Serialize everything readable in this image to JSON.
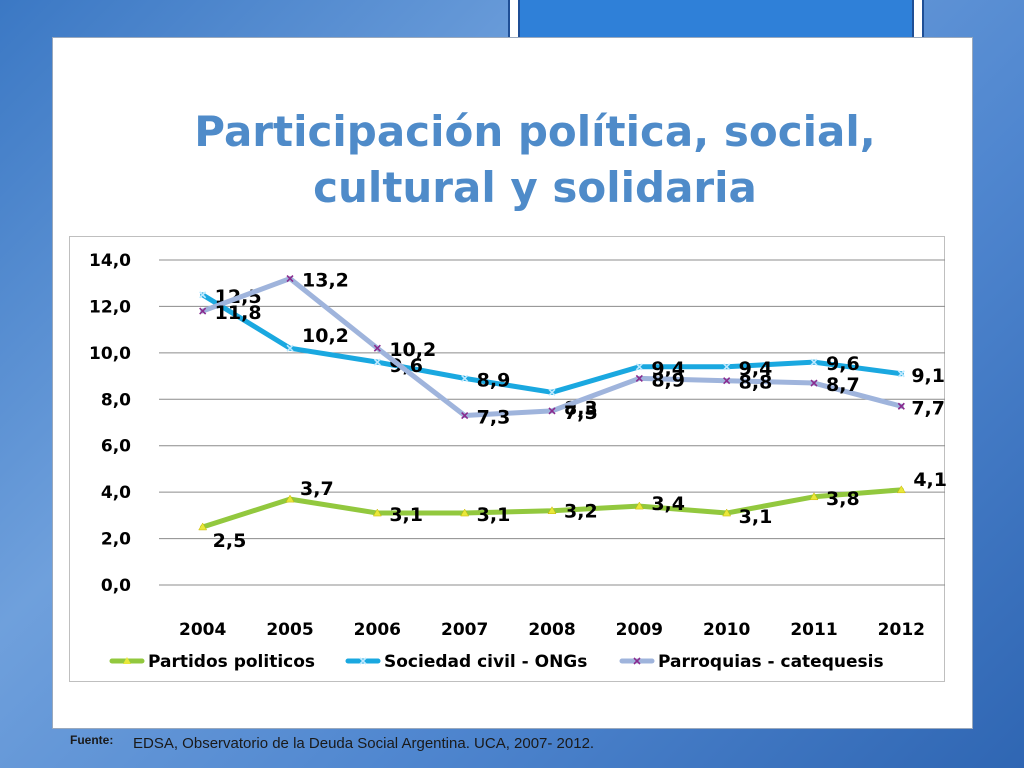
{
  "slide": {
    "title_line1": "Participación política, social,",
    "title_line2": "cultural y solidaria",
    "footer_label": "Fuente:",
    "footer_text": "EDSA, Observatorio de la Deuda Social Argentina. UCA, 2007- 2012."
  },
  "chart_data": {
    "type": "line",
    "categories": [
      "2004",
      "2005",
      "2006",
      "2007",
      "2008",
      "2009",
      "2010",
      "2011",
      "2012"
    ],
    "ylim": [
      0,
      14
    ],
    "yticks": [
      "0,0",
      "2,0",
      "4,0",
      "6,0",
      "8,0",
      "10,0",
      "12,0",
      "14,0"
    ],
    "grid": true,
    "legend_position": "bottom",
    "series": [
      {
        "name": "Partidos politicos",
        "color": "#92c83e",
        "marker": "triangle",
        "values": [
          2.5,
          3.7,
          3.1,
          3.1,
          3.2,
          3.4,
          3.1,
          3.8,
          4.1
        ],
        "labels": [
          "2,5",
          "3,7",
          "3,1",
          "3,1",
          "3,2",
          "3,4",
          "3,1",
          "3,8",
          "4,1"
        ]
      },
      {
        "name": "Sociedad civil - ONGs",
        "color": "#1aa8e0",
        "marker": "x",
        "values": [
          12.5,
          10.2,
          9.6,
          8.9,
          8.3,
          9.4,
          9.4,
          9.6,
          9.1
        ],
        "labels": [
          "12,5",
          "10,2",
          "9,6",
          "8,9",
          "8,3",
          "9,4",
          "9,4",
          "9,6",
          "9,1"
        ]
      },
      {
        "name": "Parroquias - catequesis",
        "color": "#9fb4dc",
        "marker": "x",
        "values": [
          11.8,
          13.2,
          10.2,
          7.3,
          7.5,
          8.9,
          8.8,
          8.7,
          7.7
        ],
        "labels": [
          "11,8",
          "13,2",
          "10,2",
          "7,3",
          "7,5",
          "8,9",
          "8,8",
          "8,7",
          "7,7"
        ]
      }
    ]
  }
}
